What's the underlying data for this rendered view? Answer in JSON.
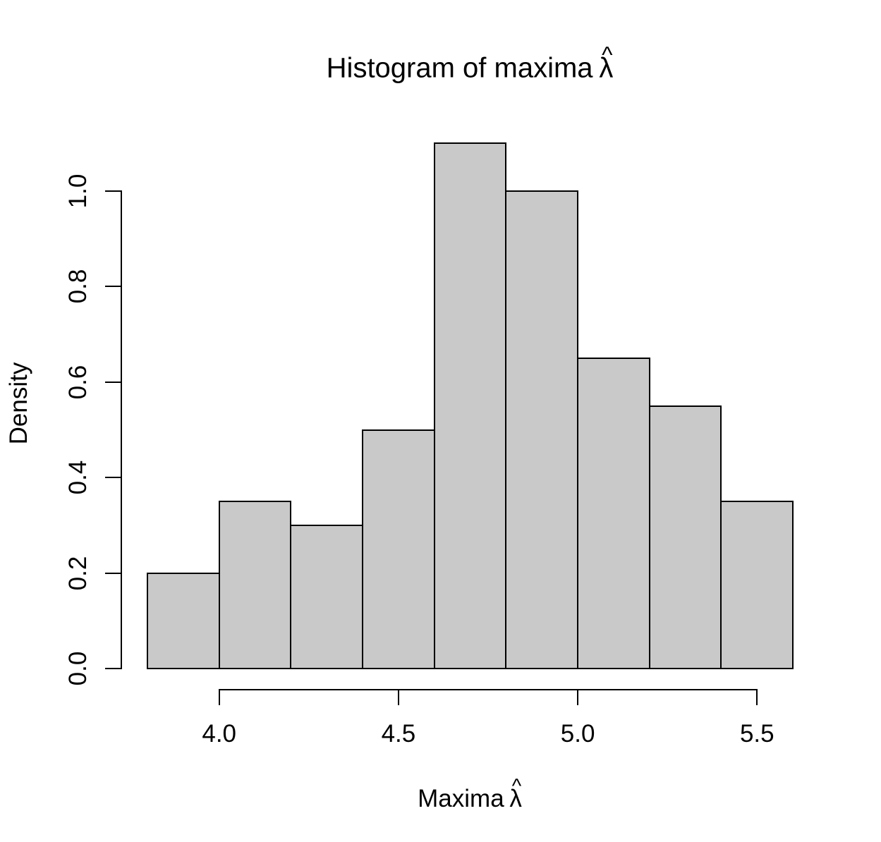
{
  "figure": {
    "title_prefix": "Histogram of maxima",
    "xlabel_prefix": "Maxima",
    "ylabel": "Density",
    "lambda": "λ",
    "hat": "^"
  },
  "chart_data": {
    "type": "bar",
    "subtype": "histogram",
    "title": "Histogram of maxima λ̂",
    "xlabel": "Maxima λ̂",
    "ylabel": "Density",
    "bin_edges": [
      3.8,
      4.0,
      4.2,
      4.4,
      4.6,
      4.8,
      5.0,
      5.2,
      5.4,
      5.6
    ],
    "densities": [
      0.2,
      0.35,
      0.3,
      0.5,
      1.1,
      1.0,
      0.65,
      0.55,
      0.35
    ],
    "x_ticks": [
      4.0,
      4.5,
      5.0,
      5.5
    ],
    "x_tick_labels": [
      "4.0",
      "4.5",
      "5.0",
      "5.5"
    ],
    "y_ticks": [
      0.0,
      0.2,
      0.4,
      0.6,
      0.8,
      1.0
    ],
    "y_tick_labels": [
      "0.0",
      "0.2",
      "0.4",
      "0.6",
      "0.8",
      "1.0"
    ],
    "xlim": [
      3.8,
      5.6
    ],
    "ylim": [
      0,
      1.1
    ],
    "grid": false,
    "legend": false,
    "bar_fill": "#C9C9C9",
    "bar_border": "#000000",
    "axis_color": "#000000",
    "background": "#FFFFFF"
  }
}
